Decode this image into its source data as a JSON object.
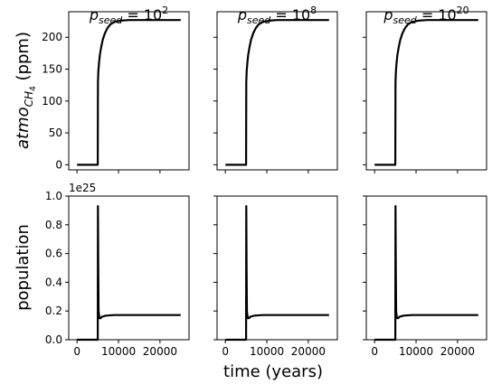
{
  "chart_data": {
    "type": "line",
    "xlabel": "time (years)",
    "columns": [
      {
        "title_base": "p",
        "title_sub": "seed",
        "title_eq": " = 10",
        "title_exp": "2"
      },
      {
        "title_base": "p",
        "title_sub": "seed",
        "title_eq": " = 10",
        "title_exp": "8"
      },
      {
        "title_base": "p",
        "title_sub": "seed",
        "title_eq": " = 10",
        "title_exp": "20"
      }
    ],
    "rows": [
      {
        "ylabel_main": "atmo",
        "ylabel_sub": "CH",
        "ylabel_subsub": "4",
        "ylabel_units": " (ppm)",
        "ylim": [
          -8,
          240
        ],
        "yticks": [
          0,
          50,
          100,
          150,
          200
        ],
        "ytick_labels": [
          "0",
          "50",
          "100",
          "150",
          "200"
        ],
        "x": [
          0,
          5000,
          5050,
          5150,
          5300,
          5500,
          5800,
          6200,
          6700,
          7300,
          8000,
          9000,
          10500,
          12500,
          15000,
          20000,
          25000
        ],
        "y": [
          0,
          0,
          130,
          148,
          160,
          172,
          184,
          196,
          206,
          214,
          220,
          224,
          226,
          227,
          227,
          227,
          227
        ]
      },
      {
        "ylabel": "population",
        "scale_label": "1e25",
        "ylim": [
          0,
          1.0
        ],
        "yticks": [
          0.0,
          0.2,
          0.4,
          0.6,
          0.8,
          1.0
        ],
        "ytick_labels": [
          "0.0",
          "0.2",
          "0.4",
          "0.6",
          "0.8",
          "1.0"
        ],
        "x": [
          0,
          4990,
          5020,
          5050,
          5100,
          5200,
          5400,
          5700,
          6000,
          7000,
          9000,
          12000,
          25000
        ],
        "y": [
          0,
          0,
          0.5,
          0.93,
          0.55,
          0.2,
          0.15,
          0.15,
          0.16,
          0.168,
          0.172,
          0.172,
          0.172
        ]
      }
    ],
    "xlim": [
      -2000,
      27000
    ],
    "xticks": [
      0,
      10000,
      20000
    ],
    "xtick_labels": [
      "0",
      "10000",
      "20000"
    ]
  }
}
